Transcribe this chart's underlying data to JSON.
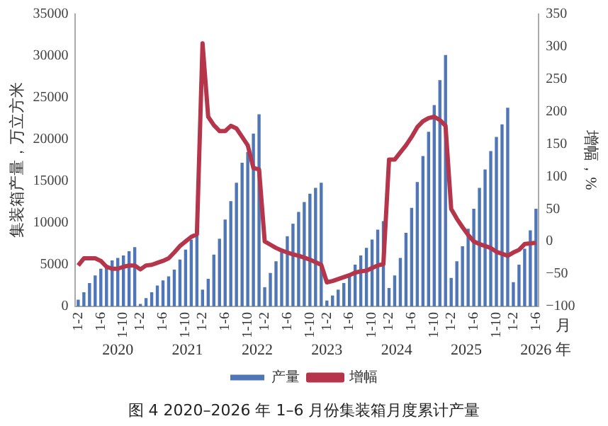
{
  "chart_data": {
    "type": "bar",
    "title": "图 4 2020–2026 年 1–6 月份集装箱月度累计产量",
    "xlabel": "月",
    "ylabel": "集装箱产量，万立方米",
    "y2label": "增幅，%",
    "annotations": [
      "2020",
      "2021",
      "2022",
      "2023",
      "2024",
      "2025",
      "2026",
      "年"
    ],
    "categories": [
      "1-2",
      null,
      null,
      null,
      "1-6",
      null,
      null,
      null,
      "1-10",
      null,
      null,
      "1-2",
      null,
      null,
      null,
      "1-6",
      null,
      null,
      null,
      "1-10",
      null,
      null,
      "1-2",
      null,
      null,
      null,
      "1-6",
      null,
      null,
      null,
      "1-10",
      null,
      null,
      "1-2",
      null,
      null,
      null,
      "1-6",
      null,
      null,
      null,
      "1-10",
      null,
      null,
      "1-2",
      null,
      null,
      null,
      "1-6",
      null,
      null,
      null,
      "1-10",
      null,
      null,
      "1-2",
      null,
      null,
      null,
      "1-6",
      null,
      null,
      null,
      "1-10",
      null,
      null,
      "1-2",
      null,
      null,
      null,
      "1-6",
      null,
      null,
      null,
      "1-10",
      null,
      null,
      "1-2",
      null,
      null,
      null,
      "1-6"
    ],
    "series": [
      {
        "name": "产量",
        "color": "#4f76b6",
        "values": [
          800,
          1700,
          2800,
          3700,
          4500,
          5000,
          5500,
          5800,
          6100,
          6600,
          7100,
          300,
          1000,
          1700,
          2500,
          3100,
          3600,
          4400,
          5600,
          6800,
          8000,
          8800,
          2000,
          3300,
          6200,
          8100,
          10400,
          12600,
          14800,
          17200,
          18500,
          20700,
          23000,
          2300,
          4000,
          5400,
          6900,
          8400,
          9900,
          11300,
          12500,
          13500,
          14200,
          14800,
          700,
          1300,
          2000,
          2800,
          3900,
          5000,
          6100,
          7000,
          8000,
          9200,
          10200,
          2200,
          3700,
          5800,
          8800,
          11800,
          14900,
          18000,
          20900,
          24100,
          27100,
          30100,
          3400,
          5400,
          7200,
          9300,
          11700,
          14200,
          16400,
          18600,
          20300,
          21800,
          23800,
          2900,
          5000,
          6900,
          9100,
          11700
        ]
      },
      {
        "name": "增幅",
        "type": "line",
        "axis": "y2",
        "color": "#b5364b",
        "values": [
          -37,
          -26,
          -26,
          -26,
          -30,
          -39,
          -42,
          -42,
          -39,
          -37,
          -37,
          -43,
          -37,
          -36,
          -33,
          -30,
          -26,
          -17,
          -7,
          0,
          7,
          11,
          305,
          192,
          179,
          170,
          170,
          178,
          174,
          161,
          148,
          113,
          111,
          0,
          -5,
          -10,
          -14,
          -17,
          -20,
          -22,
          -25,
          -28,
          -32,
          -36,
          -63,
          -61,
          -58,
          -55,
          -52,
          -48,
          -46,
          -45,
          -41,
          -37,
          -35,
          126,
          126,
          137,
          148,
          161,
          176,
          185,
          190,
          192,
          187,
          178,
          50,
          35,
          22,
          10,
          0,
          -4,
          -7,
          -10,
          -16,
          -19,
          -22,
          -17,
          -13,
          -4,
          -3,
          -2
        ]
      }
    ],
    "ylim": [
      0,
      35000
    ],
    "yticks": [
      0,
      5000,
      10000,
      15000,
      20000,
      25000,
      30000,
      35000
    ],
    "y2lim": [
      -100,
      350
    ],
    "y2ticks": [
      -100,
      -50,
      0,
      50,
      100,
      150,
      200,
      250,
      300,
      350
    ],
    "grid": false,
    "legend": "bottom",
    "line_style": "solid",
    "marker": "none"
  }
}
